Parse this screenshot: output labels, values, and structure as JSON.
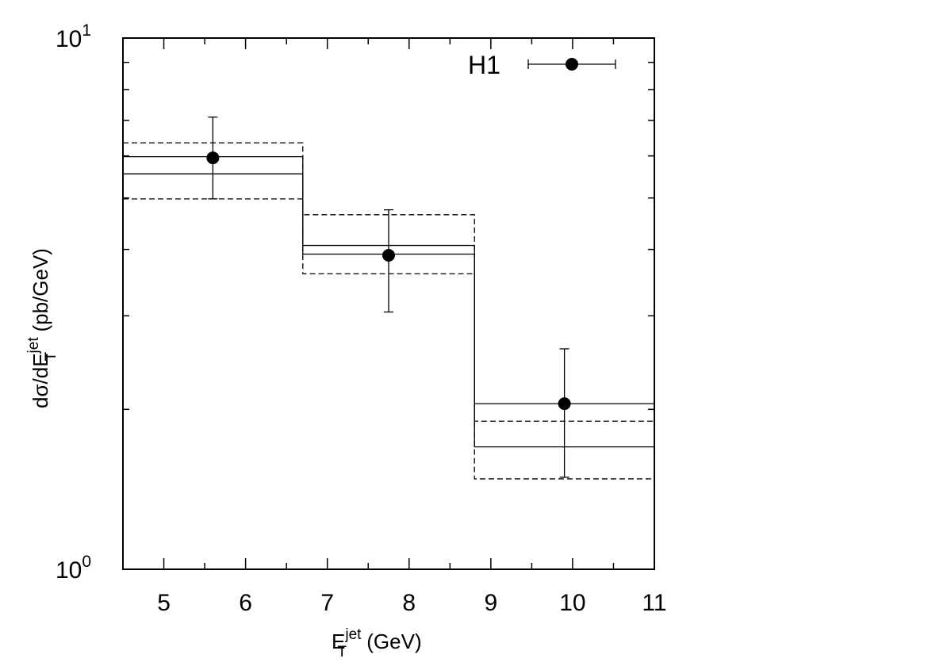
{
  "chart_data": {
    "type": "scatter",
    "xlim": [
      4.5,
      11
    ],
    "ylim": [
      1,
      10
    ],
    "y_scale": "log",
    "x_ticks": [
      "5",
      "6",
      "7",
      "8",
      "9",
      "10",
      "11"
    ],
    "y_ticks": [
      {
        "value": 1,
        "base": "10",
        "exp": "0"
      },
      {
        "value": 10,
        "base": "10",
        "exp": "1"
      }
    ],
    "xlabel": {
      "main": "E",
      "sup": "jet",
      "sub": "T",
      "rest": " (GeV)"
    },
    "ylabel": {
      "main": "dσ/dE",
      "sup": "jet",
      "sub": "T",
      "rest": " (pb/GeV)"
    },
    "legend": {
      "label": "H1",
      "placement": "top-right"
    },
    "series": [
      {
        "name": "H1",
        "points": [
          {
            "x": 5.6,
            "y": 5.95,
            "ylow": 4.98,
            "yhigh": 7.1
          },
          {
            "x": 7.75,
            "y": 3.9,
            "ylow": 3.05,
            "yhigh": 4.75
          },
          {
            "x": 9.9,
            "y": 2.05,
            "ylow": 1.49,
            "yhigh": 2.6
          }
        ]
      }
    ],
    "bands": [
      {
        "x0": 4.5,
        "x1": 6.7,
        "solid_low": 5.55,
        "solid_high": 5.98,
        "dash_low": 4.98,
        "dash_high": 6.35
      },
      {
        "x0": 6.7,
        "x1": 8.8,
        "solid_low": 3.92,
        "solid_high": 4.07,
        "dash_low": 3.6,
        "dash_high": 4.65
      },
      {
        "x0": 8.8,
        "x1": 11.0,
        "solid_low": 1.7,
        "solid_high": 2.05,
        "dash_low": 1.48,
        "dash_high": 1.9
      }
    ]
  }
}
